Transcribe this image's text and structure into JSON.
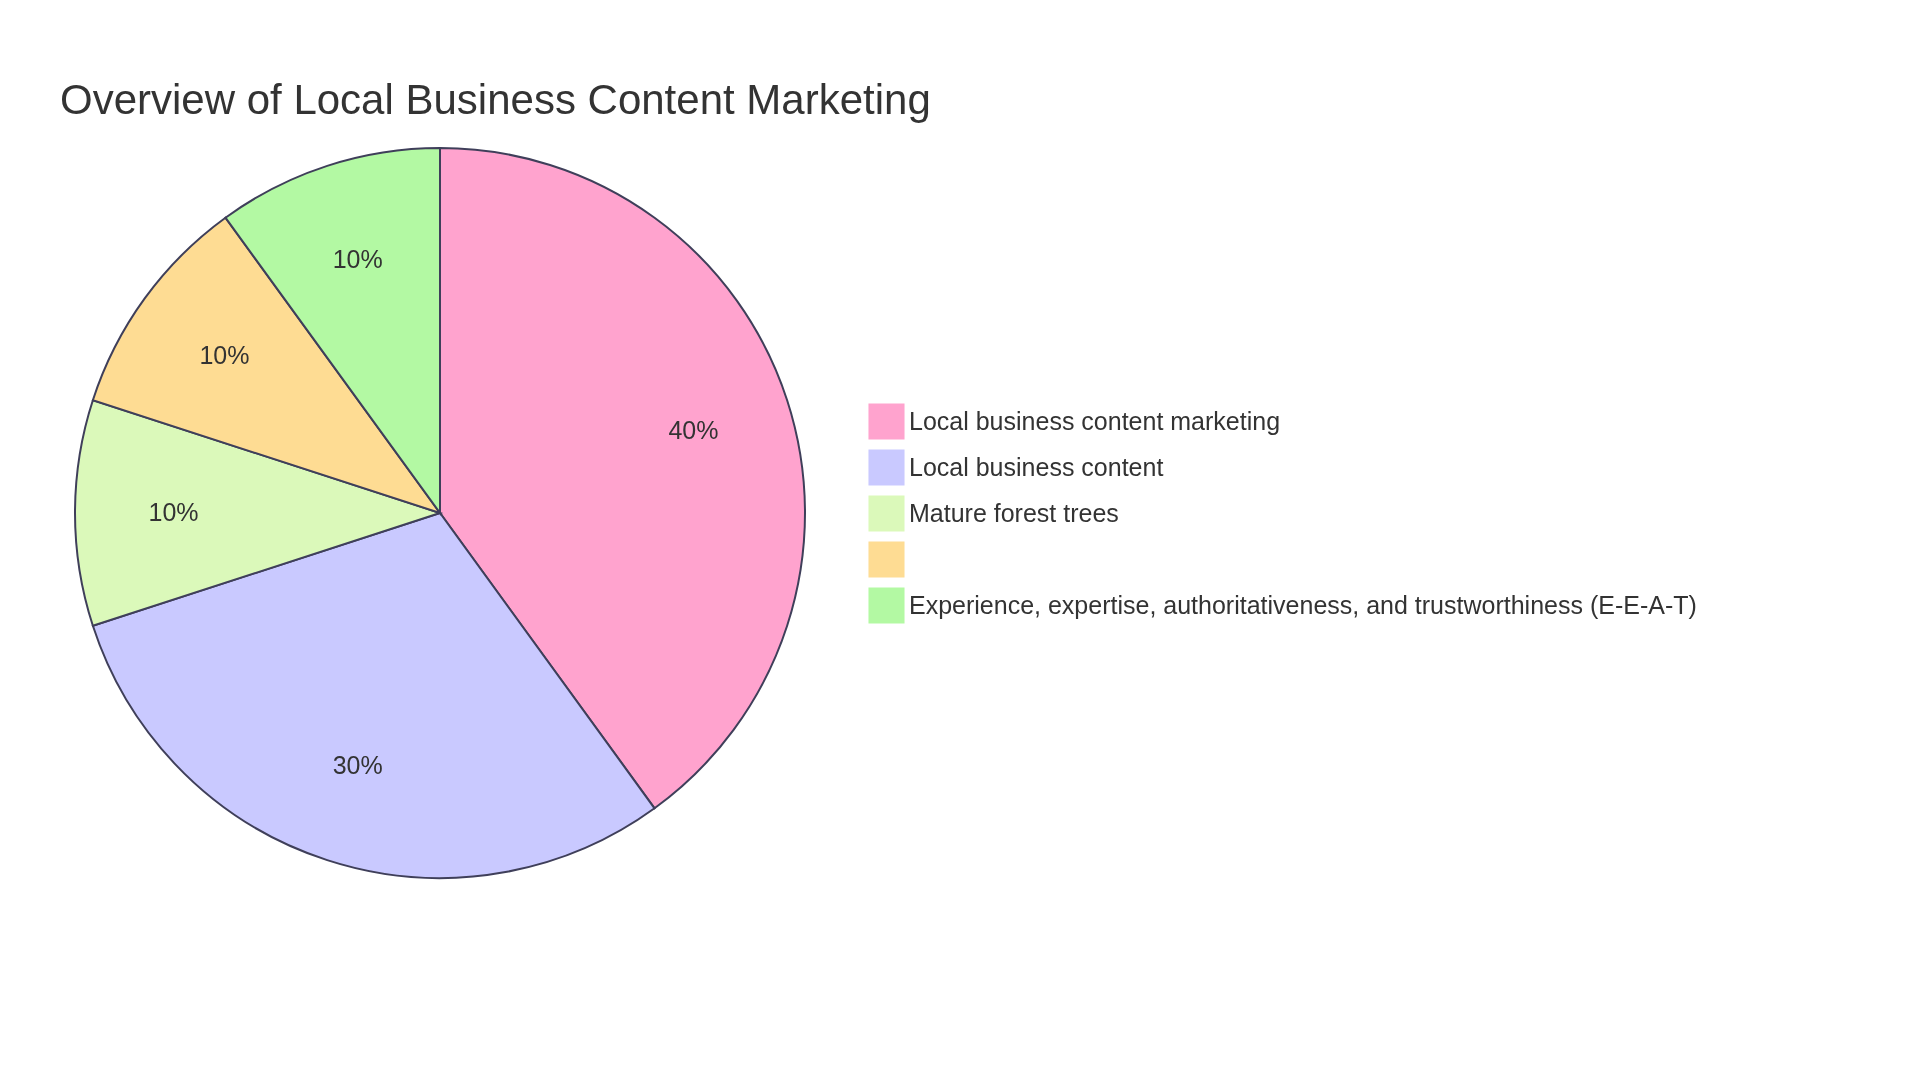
{
  "chart_data": {
    "type": "pie",
    "title": "Overview of Local Business Content Marketing",
    "categories": [
      "Local business content marketing",
      "Local business content",
      "Mature forest trees",
      null,
      "Experience, expertise, authoritativeness, and trustworthiness (E-E-A-T)"
    ],
    "values": [
      40,
      30,
      10,
      10,
      10
    ],
    "colors": [
      "#ffa3ce",
      "#c9c9ff",
      "#dbf9ba",
      "#fedc93",
      "#b3f9a3"
    ],
    "value_labels": [
      "40%",
      "30%",
      "10%",
      "10%",
      "10%"
    ],
    "legend": "right"
  }
}
